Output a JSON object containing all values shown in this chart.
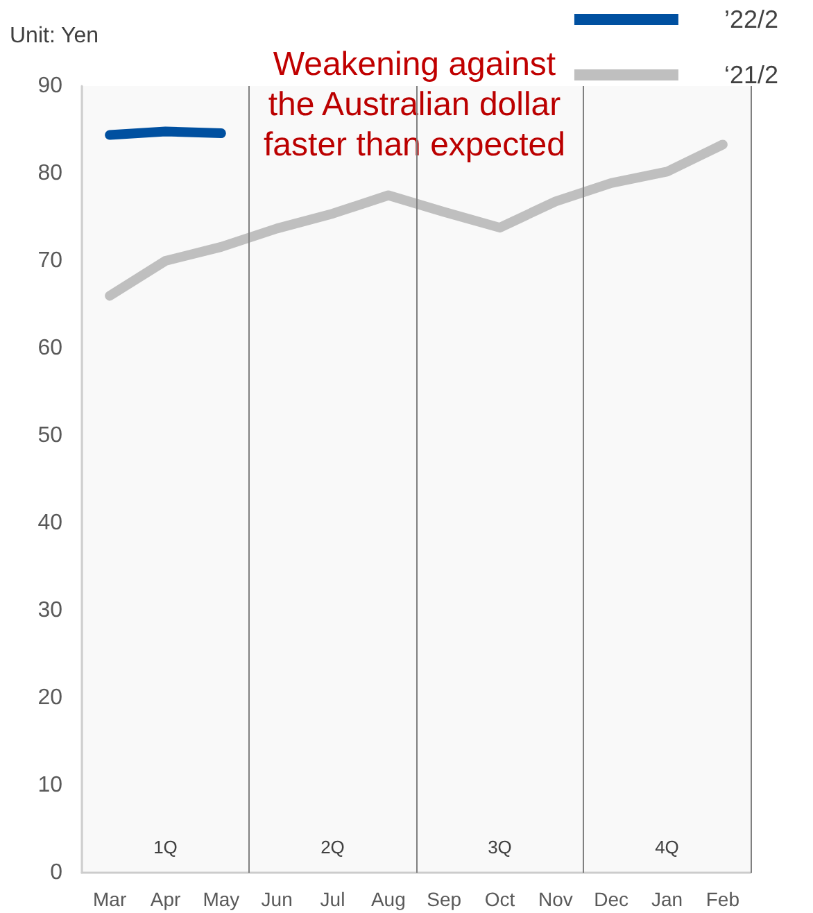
{
  "chart_data": {
    "type": "line",
    "ylabel": "Unit: Yen",
    "categories": [
      "Mar",
      "Apr",
      "May",
      "Jun",
      "Jul",
      "Aug",
      "Sep",
      "Oct",
      "Nov",
      "Dec",
      "Jan",
      "Feb"
    ],
    "series": [
      {
        "name": "’22/2",
        "color": "#0050a0",
        "values": [
          84.4,
          84.8,
          84.6,
          null,
          null,
          null,
          null,
          null,
          null,
          null,
          null,
          null
        ]
      },
      {
        "name": "‘21/2",
        "color": "#bfbfbf",
        "values": [
          66.0,
          70.0,
          71.6,
          73.7,
          75.4,
          77.5,
          75.6,
          73.8,
          76.8,
          78.9,
          80.2,
          83.3
        ]
      }
    ],
    "ylim": [
      0,
      90
    ],
    "yticks": [
      0,
      10,
      20,
      30,
      40,
      50,
      60,
      70,
      80,
      90
    ],
    "grid": false,
    "legend": "top right",
    "marker": "none",
    "line_style": "solid",
    "bands": [
      {
        "axis": "x",
        "from": "Mar",
        "to": "May",
        "label": "1Q"
      },
      {
        "axis": "x",
        "from": "Jun",
        "to": "Aug",
        "label": "2Q"
      },
      {
        "axis": "x",
        "from": "Sep",
        "to": "Nov",
        "label": "3Q"
      },
      {
        "axis": "x",
        "from": "Dec",
        "to": "Feb",
        "label": "4Q"
      }
    ],
    "annotations": [
      "Weakening against\nthe Australian dollar\nfaster than expected"
    ]
  }
}
